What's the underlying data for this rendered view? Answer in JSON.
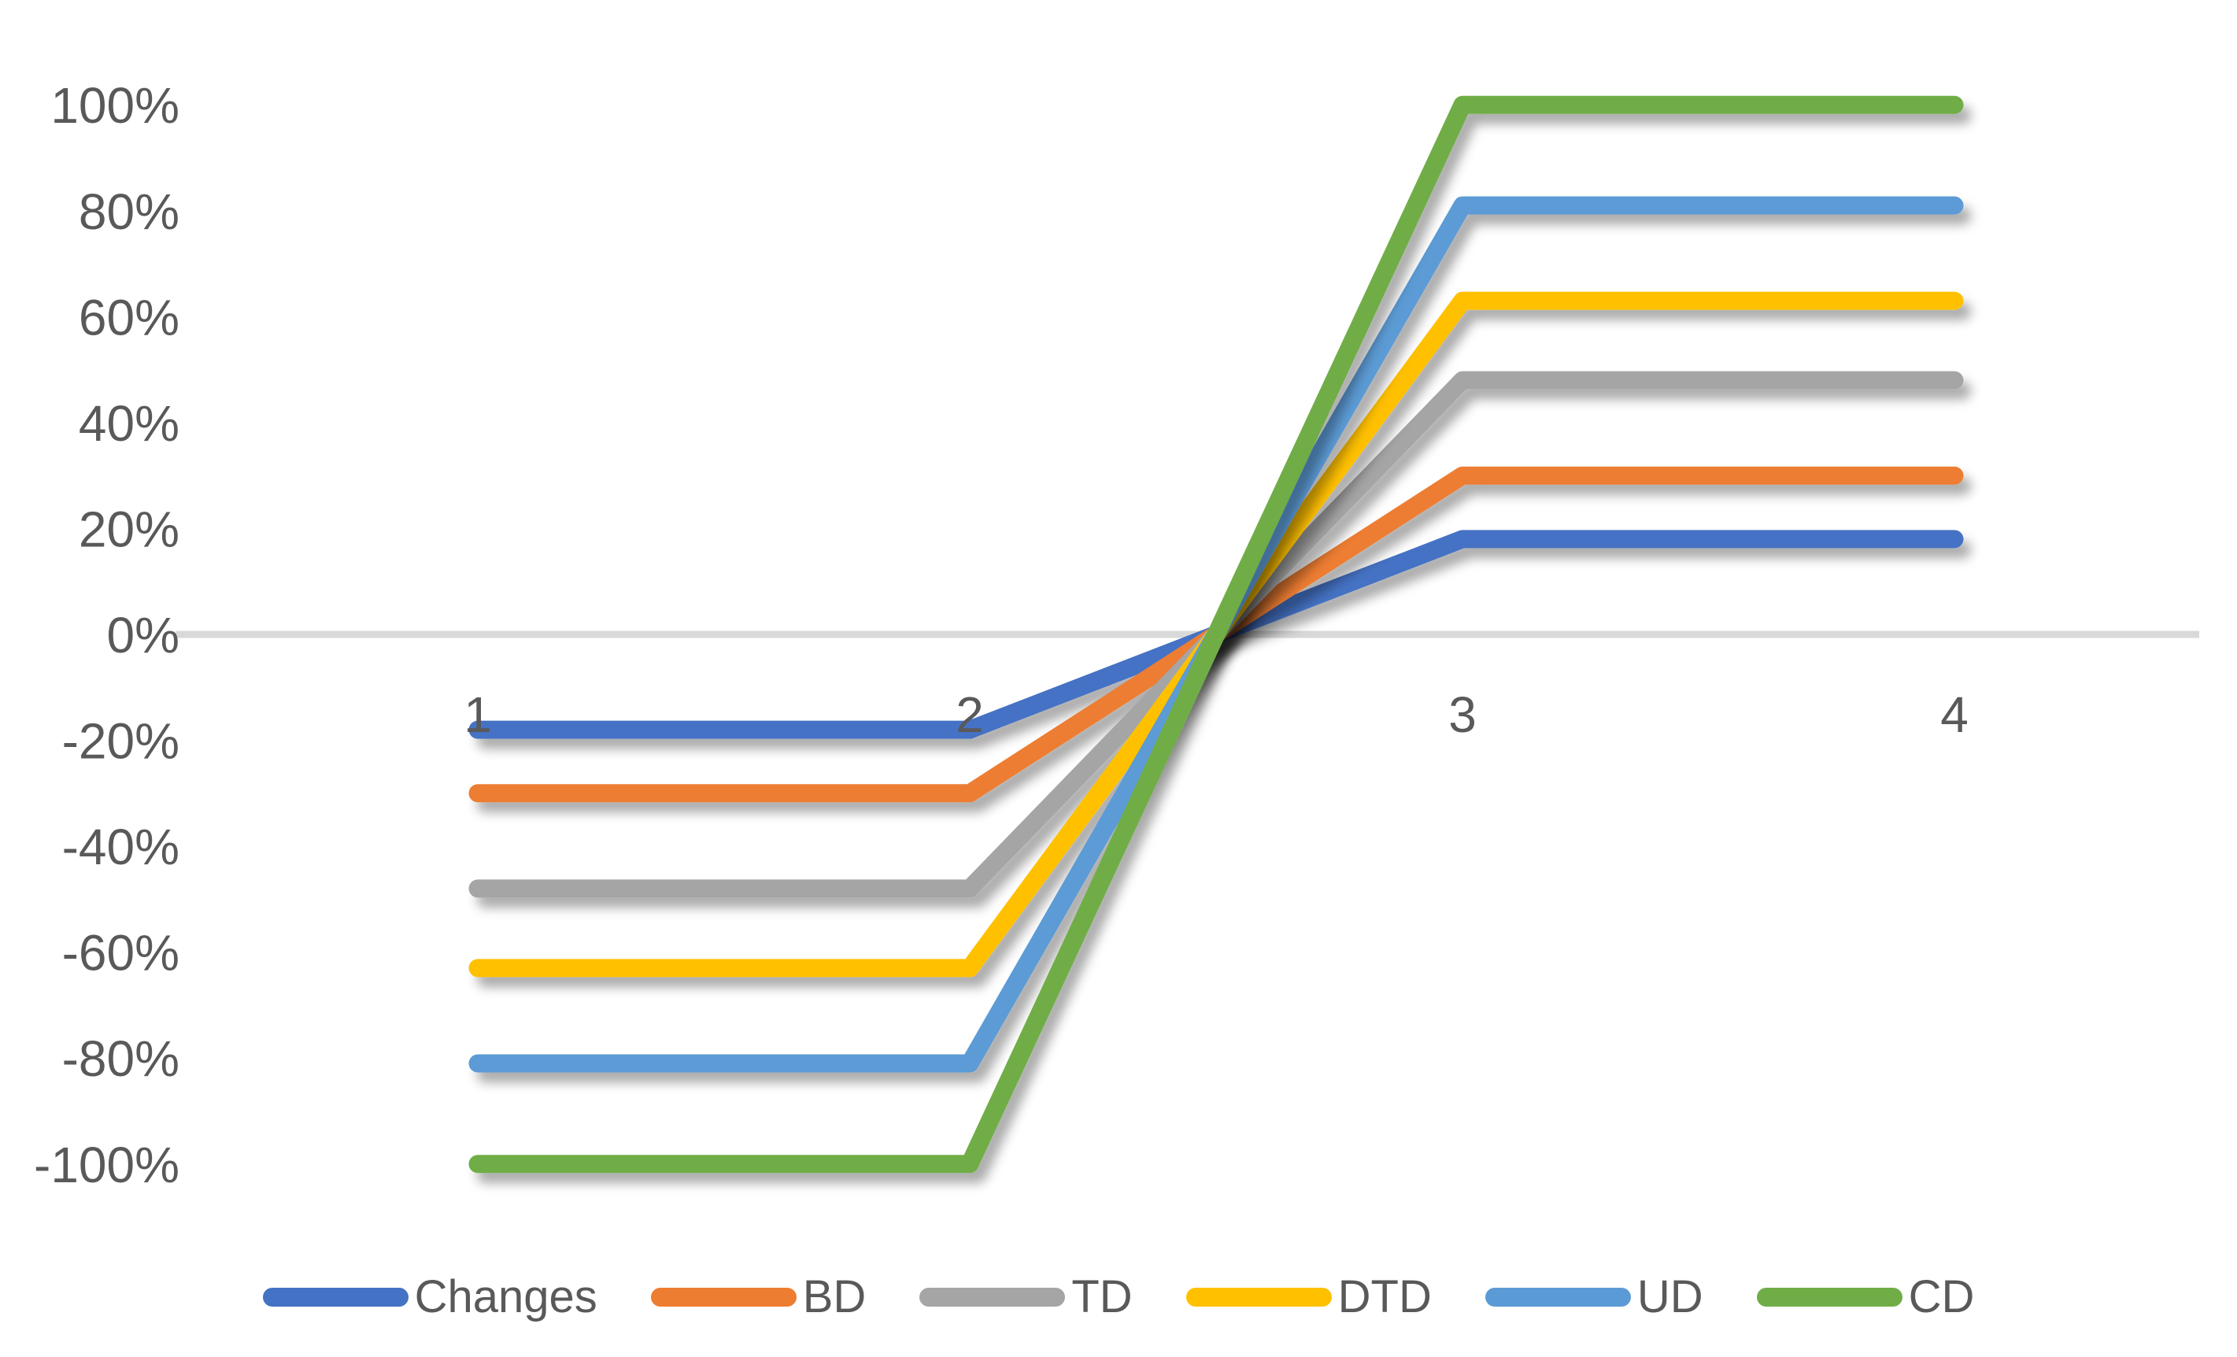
{
  "chart_data": {
    "type": "line",
    "title": "",
    "xlabel": "",
    "ylabel": "",
    "categories": [
      "1",
      "2",
      "3",
      "4"
    ],
    "series": [
      {
        "name": "Changes",
        "color": "#4472C4",
        "values": [
          -18,
          -18,
          18,
          18
        ]
      },
      {
        "name": "BD",
        "color": "#ED7D31",
        "values": [
          -30,
          -30,
          30,
          30
        ]
      },
      {
        "name": "TD",
        "color": "#A5A5A5",
        "values": [
          -48,
          -48,
          48,
          48
        ]
      },
      {
        "name": "DTD",
        "color": "#FFC000",
        "values": [
          -63,
          -63,
          63,
          63
        ]
      },
      {
        "name": "UD",
        "color": "#5B9BD5",
        "values": [
          -81,
          -81,
          81,
          81
        ]
      },
      {
        "name": "CD",
        "color": "#70AD47",
        "values": [
          -100,
          -100,
          100,
          100
        ]
      }
    ],
    "ylim": [
      -100,
      100
    ],
    "y_ticks": [
      {
        "value": 100,
        "label": "100%"
      },
      {
        "value": 80,
        "label": "80%"
      },
      {
        "value": 60,
        "label": "60%"
      },
      {
        "value": 40,
        "label": "40%"
      },
      {
        "value": 20,
        "label": "20%"
      },
      {
        "value": 0,
        "label": "0%"
      },
      {
        "value": -20,
        "label": "-20%"
      },
      {
        "value": -40,
        "label": "-40%"
      },
      {
        "value": -60,
        "label": "-60%"
      },
      {
        "value": -80,
        "label": "-80%"
      },
      {
        "value": -100,
        "label": "-100%"
      }
    ],
    "grid": false,
    "legend_position": "bottom",
    "axis_color": "#D9D9D9",
    "text_color": "#595959"
  }
}
